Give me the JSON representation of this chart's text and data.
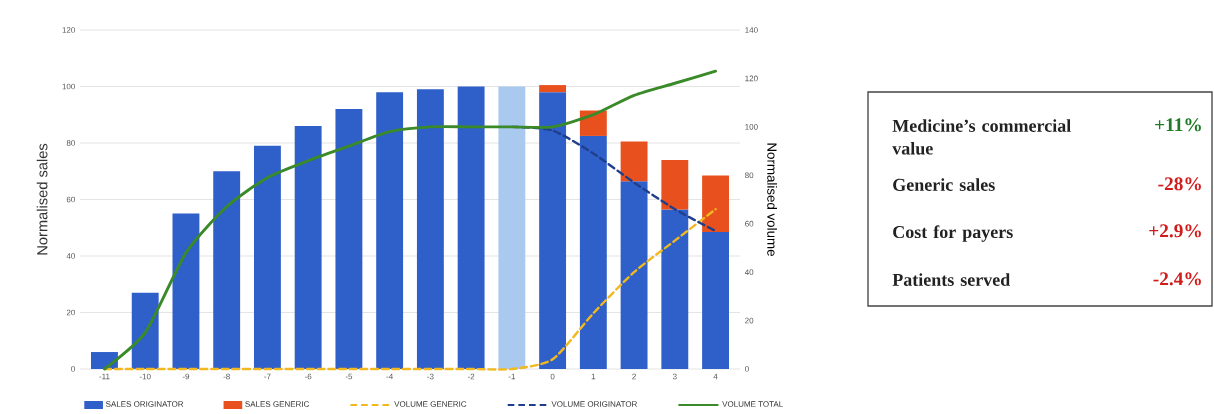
{
  "chart_data": [
    {
      "type": "bar",
      "stacked": true,
      "categories": [
        "-11",
        "-10",
        "-9",
        "-8",
        "-7",
        "-6",
        "-5",
        "-4",
        "-3",
        "-2",
        "-1",
        "0",
        "1",
        "2",
        "3",
        "4"
      ],
      "series": [
        {
          "name": "SALES ORIGINATOR",
          "color": "#2f5fc8",
          "colors": [
            "#2f5fc8",
            "#2f5fc8",
            "#2f5fc8",
            "#2f5fc8",
            "#2f5fc8",
            "#2f5fc8",
            "#2f5fc8",
            "#2f5fc8",
            "#2f5fc8",
            "#2f5fc8",
            "#a9c9ef",
            "#2f5fc8",
            "#2f5fc8",
            "#2f5fc8",
            "#2f5fc8",
            "#2f5fc8"
          ],
          "values": [
            6,
            27,
            55,
            70,
            79,
            86,
            92,
            98,
            99,
            100,
            100,
            98,
            82.5,
            66.5,
            56.5,
            48.5
          ]
        },
        {
          "name": "SALES GENERIC",
          "color": "#e8501e",
          "values": [
            null,
            null,
            null,
            null,
            null,
            null,
            null,
            null,
            null,
            null,
            null,
            2.5,
            9,
            14,
            17.5,
            20
          ]
        },
        {
          "name": "VOLUME GENERIC",
          "type": "line",
          "axis": "y2",
          "color": "#f2b820",
          "line_style": "dashed",
          "values": [
            0,
            0,
            0,
            0,
            0,
            0,
            0,
            0,
            0,
            0,
            0,
            4,
            23,
            40,
            53,
            66
          ]
        },
        {
          "name": "VOLUME ORIGINATOR",
          "type": "line",
          "axis": "y2",
          "color": "#1f3e8c",
          "line_style": "dashed",
          "values": [
            null,
            null,
            null,
            null,
            null,
            null,
            null,
            null,
            null,
            null,
            100,
            98.5,
            89,
            77,
            66,
            57
          ]
        },
        {
          "name": "VOLUME TOTAL",
          "type": "line",
          "axis": "y2",
          "color": "#3a8a2a",
          "line_style": "solid",
          "values": [
            0,
            15,
            48,
            67,
            79,
            86,
            92,
            98,
            100,
            100,
            100,
            100,
            105,
            113,
            118,
            123
          ]
        }
      ],
      "ylabel": "Normalised sales",
      "y2label": "Normalised volume",
      "ylim": [
        0,
        120
      ],
      "yticks": [
        0,
        20,
        40,
        60,
        80,
        100,
        120
      ],
      "y2lim": [
        0,
        140
      ],
      "y2ticks": [
        0,
        20,
        40,
        60,
        80,
        100,
        120,
        140
      ],
      "grid": "y",
      "legend": "bottom"
    },
    {
      "type": "other",
      "categories": [
        "Medicine’s commercial value",
        "Generic sales",
        "Cost for payers",
        "Patients served"
      ],
      "value_labels": [
        "+11%",
        "-28%",
        "+2.9%",
        "-2.4%"
      ],
      "colors": [
        "#1e7a24",
        "#d01c1c",
        "#d01c1c",
        "#d01c1c"
      ]
    }
  ]
}
